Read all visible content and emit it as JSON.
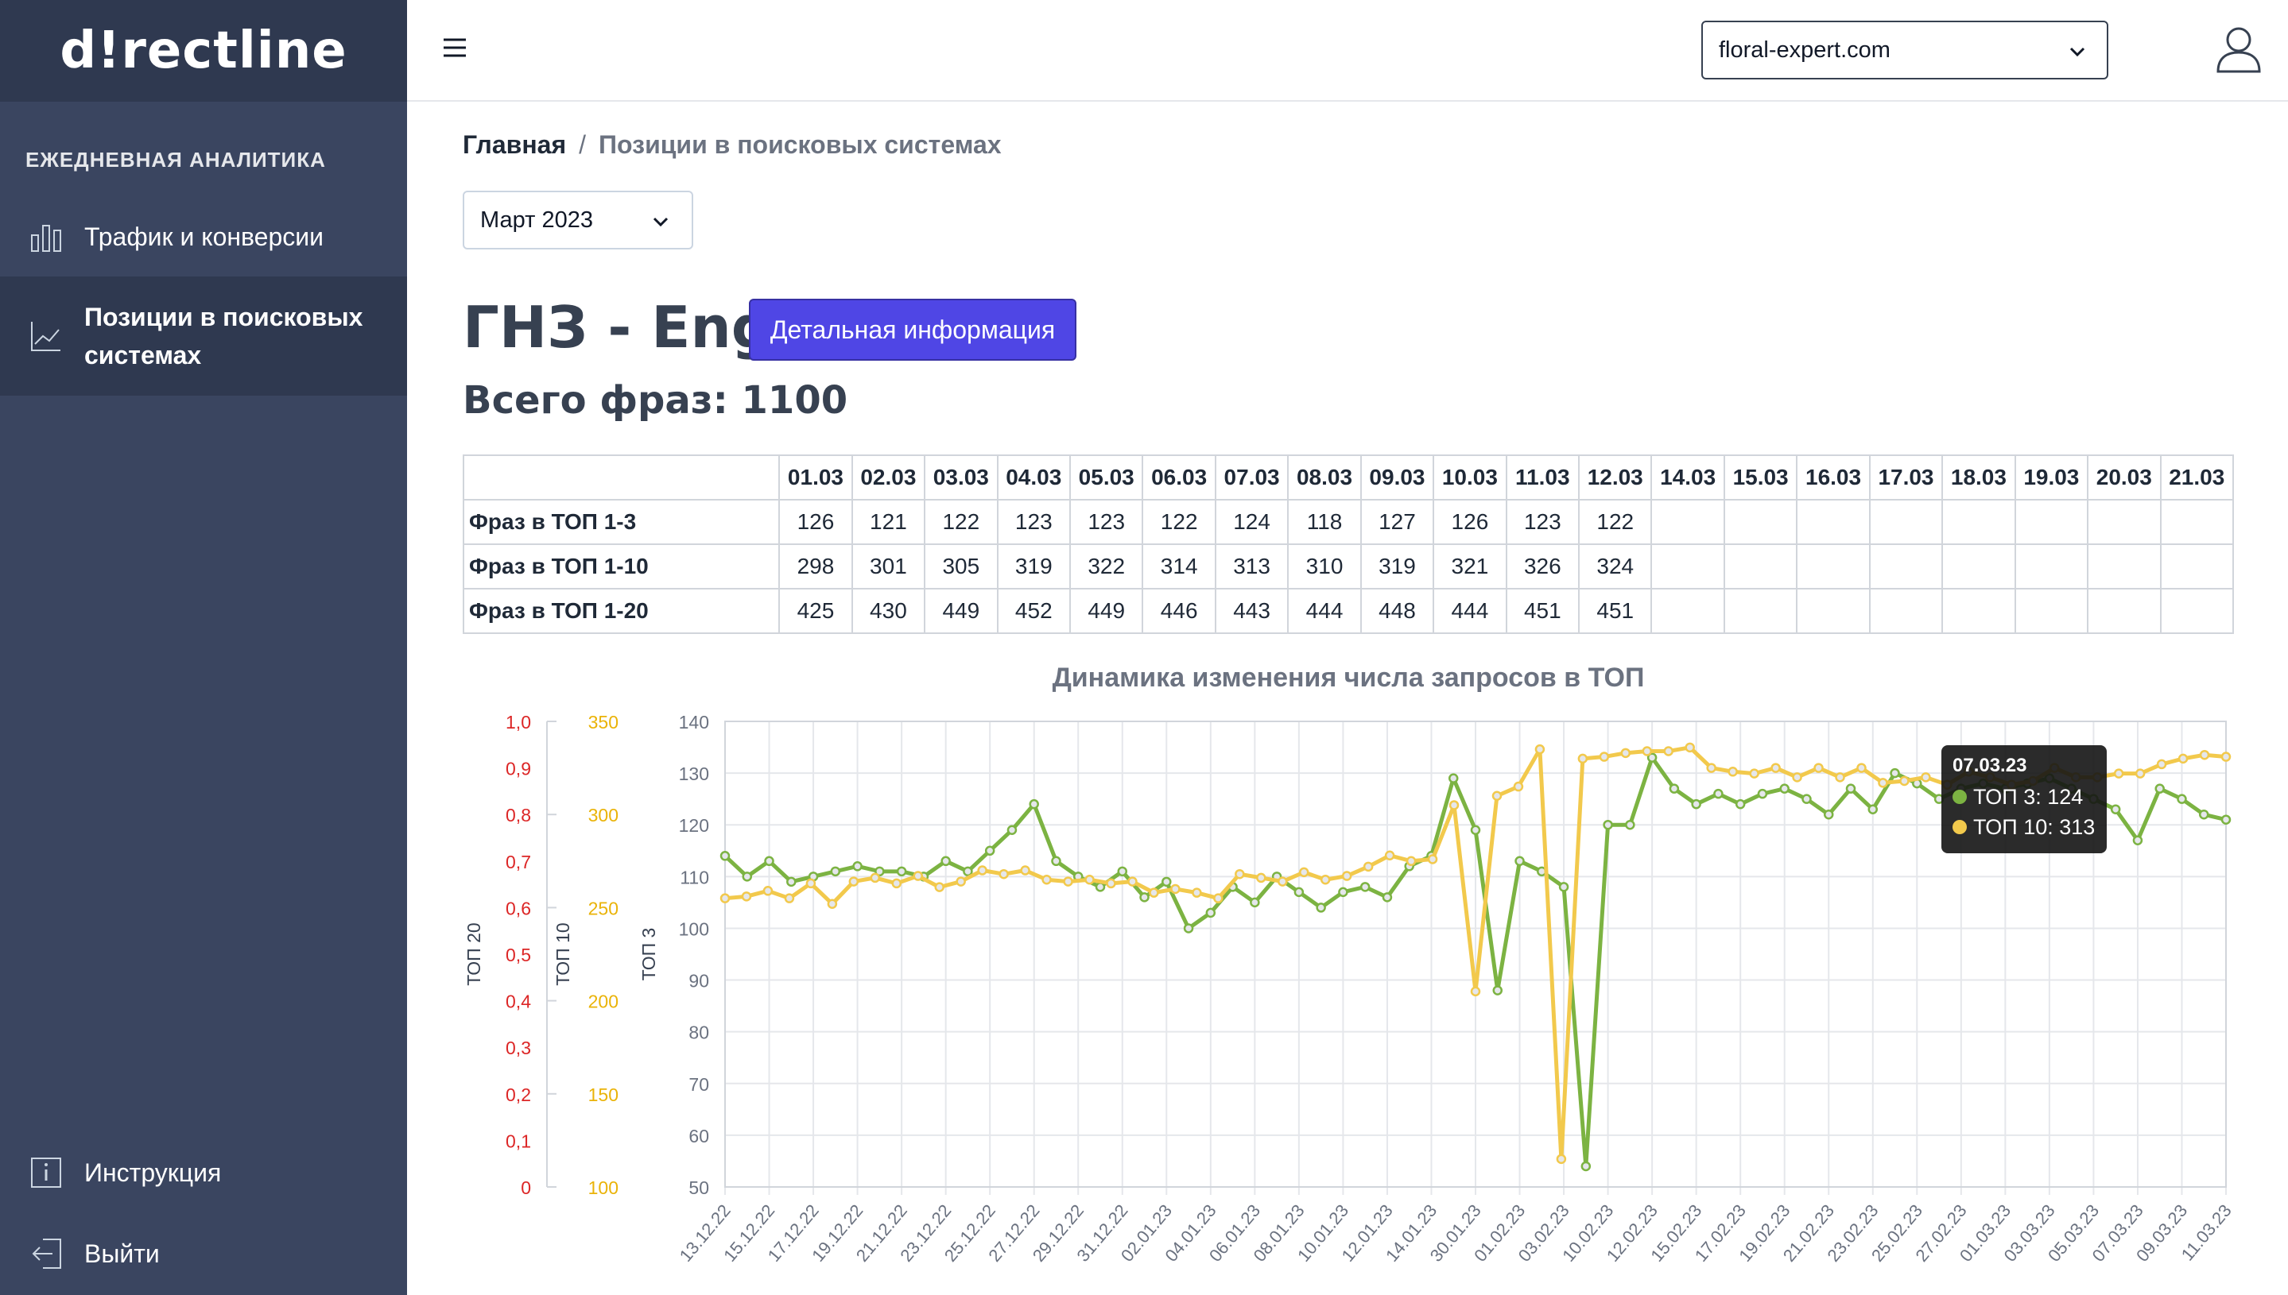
{
  "sidebar": {
    "logo": "d!rectline",
    "section_title": "ЕЖЕДНЕВНАЯ АНАЛИТИКА",
    "items": [
      {
        "label": "Трафик и конверсии",
        "icon": "bar-chart-icon"
      },
      {
        "label": "Позиции в поисковых системах",
        "icon": "line-chart-icon"
      }
    ],
    "bottom": [
      {
        "label": "Инструкция",
        "icon": "info-icon"
      },
      {
        "label": "Выйти",
        "icon": "logout-icon"
      }
    ]
  },
  "header": {
    "site": "floral-expert.com"
  },
  "breadcrumb": {
    "home": "Главная",
    "separator": "/",
    "current": "Позиции в поисковых системах"
  },
  "filters": {
    "month": "Март 2023"
  },
  "page": {
    "title": "ГНЗ - Eng",
    "detail_button": "Детальная информация",
    "total": "Всего фраз: 1100"
  },
  "table": {
    "dates": [
      "01.03",
      "02.03",
      "03.03",
      "04.03",
      "05.03",
      "06.03",
      "07.03",
      "08.03",
      "09.03",
      "10.03",
      "11.03",
      "12.03",
      "14.03",
      "15.03",
      "16.03",
      "17.03",
      "18.03",
      "19.03",
      "20.03",
      "21.03"
    ],
    "rows": [
      {
        "label": "Фраз в ТОП 1-3",
        "values": [
          "126",
          "121",
          "122",
          "123",
          "123",
          "122",
          "124",
          "118",
          "127",
          "126",
          "123",
          "122",
          "",
          "",
          "",
          "",
          "",
          "",
          "",
          ""
        ]
      },
      {
        "label": "Фраз в ТОП 1-10",
        "values": [
          "298",
          "301",
          "305",
          "319",
          "322",
          "314",
          "313",
          "310",
          "319",
          "321",
          "326",
          "324",
          "",
          "",
          "",
          "",
          "",
          "",
          "",
          ""
        ]
      },
      {
        "label": "Фраз в ТОП 1-20",
        "values": [
          "425",
          "430",
          "449",
          "452",
          "449",
          "446",
          "443",
          "444",
          "448",
          "444",
          "451",
          "451",
          "",
          "",
          "",
          "",
          "",
          "",
          "",
          ""
        ]
      }
    ]
  },
  "chart_data": {
    "type": "line",
    "title": "Динамика изменения числа запросов в ТОП",
    "axes": {
      "top20": {
        "label": "ТОП 20",
        "range": [
          0,
          1.0
        ],
        "ticks": [
          "1,0",
          "0,9",
          "0,8",
          "0,7",
          "0,6",
          "0,5",
          "0,4",
          "0,3",
          "0,2",
          "0,1",
          "0"
        ],
        "color": "#dc2626"
      },
      "top10": {
        "label": "ТОП 10",
        "range": [
          100,
          350
        ],
        "ticks": [
          "350",
          "300",
          "250",
          "200",
          "150",
          "100"
        ],
        "color": "#eab308"
      },
      "top3": {
        "label": "ТОП 3",
        "range": [
          50,
          140
        ],
        "ticks": [
          "140",
          "130",
          "120",
          "110",
          "100",
          "90",
          "80",
          "70",
          "60",
          "50"
        ],
        "color": "#6b7280"
      }
    },
    "x_labels": [
      "13.12.22",
      "15.12.22",
      "17.12.22",
      "19.12.22",
      "21.12.22",
      "23.12.22",
      "25.12.22",
      "27.12.22",
      "29.12.22",
      "31.12.22",
      "02.01.23",
      "04.01.23",
      "06.01.23",
      "08.01.23",
      "10.01.23",
      "12.01.23",
      "14.01.23",
      "30.01.23",
      "01.02.23",
      "03.02.23",
      "10.02.23",
      "12.02.23",
      "15.02.23",
      "17.02.23",
      "19.02.23",
      "21.02.23",
      "23.02.23",
      "25.02.23",
      "27.02.23",
      "01.03.23",
      "03.03.23",
      "05.03.23",
      "07.03.23",
      "09.03.23",
      "11.03.23"
    ],
    "series": [
      {
        "name": "ТОП 3",
        "color": "#7cb342",
        "axis": "top3",
        "values": [
          114,
          110,
          113,
          109,
          110,
          111,
          112,
          111,
          111,
          110,
          113,
          111,
          115,
          119,
          124,
          113,
          110,
          108,
          111,
          106,
          109,
          100,
          103,
          108,
          105,
          110,
          107,
          104,
          107,
          108,
          106,
          112,
          114,
          129,
          119,
          88,
          113,
          111,
          108,
          54,
          120,
          120,
          133,
          127,
          124,
          126,
          124,
          126,
          127,
          125,
          122,
          127,
          123,
          130,
          128,
          125,
          127,
          128,
          127,
          128,
          129,
          127,
          125,
          123,
          117,
          127,
          125,
          122,
          121
        ],
        "note_count": 69
      },
      {
        "name": "ТОП 10",
        "color": "#f2c94c",
        "axis": "top10",
        "values": [
          255,
          256,
          259,
          255,
          263,
          252,
          264,
          266,
          263,
          267,
          261,
          264,
          270,
          268,
          270,
          265,
          264,
          265,
          263,
          264,
          258,
          260,
          258,
          255,
          268,
          266,
          264,
          269,
          265,
          267,
          272,
          278,
          275,
          276,
          305,
          205,
          310,
          315,
          335,
          115,
          330,
          331,
          333,
          334,
          334,
          336,
          325,
          323,
          322,
          325,
          320,
          325,
          320,
          325,
          317,
          318,
          320,
          316,
          323,
          320,
          316,
          318,
          325,
          320,
          320,
          322,
          322,
          327,
          330,
          332,
          331
        ],
        "note_count": 71
      }
    ],
    "tooltip": {
      "date": "07.03.23",
      "rows": [
        {
          "label": "ТОП 3: 124",
          "color": "#7cb342"
        },
        {
          "label": "ТОП 10: 313",
          "color": "#f2c94c"
        }
      ]
    }
  }
}
